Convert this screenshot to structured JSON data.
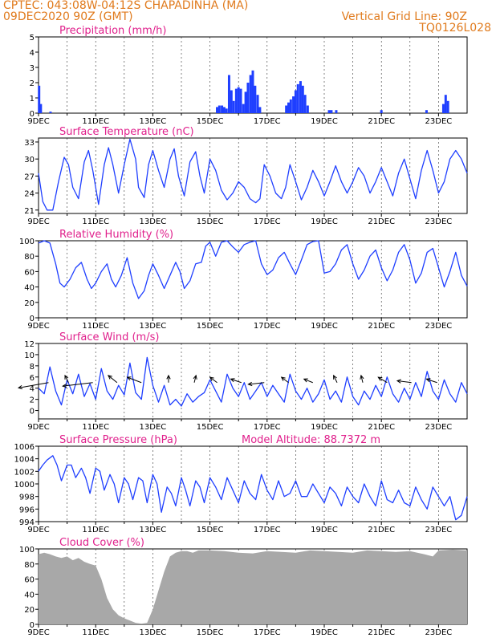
{
  "header": {
    "center_line": "CPTEC:   043:08W-04:12S   CHAPADINHA (MA)",
    "run_time": "09DEC2020 90Z (GMT)",
    "grid_note": "Vertical Grid Line: 90Z",
    "product_code": "TQ0126L028"
  },
  "colors": {
    "header": "#e07a1c",
    "panel_title": "#e0208c",
    "series": "#1f3fff",
    "cloud": "#a8a8a8",
    "axis": "#000000"
  },
  "x_axis": {
    "ticks": [
      "9DEC",
      "11DEC",
      "13DEC",
      "15DEC",
      "17DEC",
      "19DEC",
      "21DEC",
      "23DEC"
    ],
    "range_days": [
      0,
      15
    ]
  },
  "chart_data": [
    {
      "id": "precip",
      "type": "bar",
      "title": "Precipitation (mm/h)",
      "ylim": [
        0,
        5
      ],
      "yticks": [
        0,
        1,
        2,
        3,
        4,
        5
      ],
      "units": "mm/h",
      "x": [
        0.02,
        0.08,
        0.42,
        6.25,
        6.33,
        6.42,
        6.5,
        6.58,
        6.67,
        6.75,
        6.83,
        6.92,
        7.0,
        7.08,
        7.17,
        7.25,
        7.33,
        7.42,
        7.5,
        7.58,
        7.67,
        7.75,
        8.67,
        8.75,
        8.83,
        8.92,
        9.0,
        9.08,
        9.17,
        9.25,
        9.33,
        9.42,
        10.17,
        10.25,
        10.42,
        12.0,
        13.58,
        14.17,
        14.25,
        14.33
      ],
      "values": [
        1.8,
        0.6,
        0.1,
        0.4,
        0.5,
        0.5,
        0.4,
        0.3,
        2.5,
        1.5,
        0.8,
        1.6,
        1.7,
        1.6,
        0.6,
        1.4,
        2.0,
        2.5,
        2.8,
        1.8,
        1.2,
        0.4,
        0.5,
        0.7,
        0.9,
        1.1,
        1.5,
        1.9,
        2.1,
        1.8,
        1.2,
        0.5,
        0.2,
        0.2,
        0.2,
        0.2,
        0.2,
        0.6,
        1.2,
        0.8
      ]
    },
    {
      "id": "temp",
      "type": "line",
      "title": "Surface Temperature (nC)",
      "ylim": [
        20.4,
        33.7
      ],
      "yticks": [
        21,
        24,
        27,
        30,
        33
      ],
      "x": [
        0.0,
        0.15,
        0.3,
        0.5,
        0.7,
        0.9,
        1.05,
        1.2,
        1.4,
        1.6,
        1.75,
        1.9,
        2.1,
        2.3,
        2.45,
        2.6,
        2.8,
        3.0,
        3.2,
        3.4,
        3.5,
        3.7,
        3.85,
        4.0,
        4.2,
        4.4,
        4.6,
        4.75,
        4.9,
        5.1,
        5.3,
        5.5,
        5.65,
        5.8,
        6.0,
        6.2,
        6.4,
        6.6,
        6.8,
        7.0,
        7.2,
        7.4,
        7.6,
        7.75,
        7.9,
        8.1,
        8.3,
        8.5,
        8.65,
        8.8,
        9.0,
        9.2,
        9.4,
        9.6,
        9.8,
        10.0,
        10.2,
        10.4,
        10.6,
        10.8,
        11.0,
        11.2,
        11.4,
        11.6,
        11.8,
        12.0,
        12.2,
        12.4,
        12.6,
        12.8,
        13.0,
        13.2,
        13.4,
        13.6,
        13.8,
        14.0,
        14.2,
        14.4,
        14.6,
        14.8,
        15.0
      ],
      "values": [
        27.5,
        22.5,
        21.0,
        21.0,
        26.0,
        30.3,
        29.0,
        25.0,
        23.0,
        29.5,
        31.5,
        28.0,
        22.0,
        29.0,
        32.0,
        29.0,
        24.0,
        29.0,
        33.5,
        30.0,
        25.0,
        23.2,
        29.0,
        31.5,
        28.0,
        25.0,
        30.0,
        31.8,
        27.0,
        23.5,
        29.5,
        31.3,
        27.0,
        24.0,
        30.0,
        28.0,
        24.5,
        22.8,
        24.0,
        26.0,
        25.0,
        23.0,
        22.3,
        23.0,
        29.0,
        27.0,
        24.0,
        23.0,
        25.0,
        29.0,
        26.0,
        22.8,
        25.0,
        28.0,
        26.0,
        23.5,
        26.0,
        28.8,
        26.0,
        24.0,
        26.0,
        28.5,
        27.0,
        24.0,
        26.0,
        28.5,
        26.0,
        23.5,
        27.5,
        30.0,
        26.5,
        23.0,
        28.0,
        31.5,
        28.0,
        24.0,
        26.0,
        30.0,
        31.5,
        30.0,
        27.5
      ]
    },
    {
      "id": "rh",
      "type": "line",
      "title": "Relative Humidity (%)",
      "ylim": [
        0,
        100
      ],
      "yticks": [
        0,
        20,
        40,
        60,
        80,
        100
      ],
      "x": [
        0.0,
        0.2,
        0.4,
        0.6,
        0.75,
        0.9,
        1.1,
        1.3,
        1.5,
        1.7,
        1.85,
        2.0,
        2.2,
        2.4,
        2.55,
        2.7,
        2.9,
        3.1,
        3.3,
        3.5,
        3.7,
        3.85,
        4.0,
        4.2,
        4.4,
        4.6,
        4.8,
        4.95,
        5.1,
        5.3,
        5.5,
        5.7,
        5.85,
        6.0,
        6.2,
        6.4,
        6.6,
        6.8,
        7.0,
        7.2,
        7.4,
        7.6,
        7.8,
        8.0,
        8.2,
        8.4,
        8.6,
        8.8,
        9.0,
        9.2,
        9.4,
        9.6,
        9.8,
        10.0,
        10.2,
        10.4,
        10.6,
        10.8,
        11.0,
        11.2,
        11.4,
        11.6,
        11.8,
        12.0,
        12.2,
        12.4,
        12.6,
        12.8,
        13.0,
        13.2,
        13.4,
        13.6,
        13.8,
        14.0,
        14.2,
        14.4,
        14.6,
        14.8,
        15.0
      ],
      "values": [
        97,
        100,
        97,
        70,
        45,
        40,
        50,
        65,
        72,
        50,
        38,
        45,
        60,
        70,
        50,
        40,
        55,
        78,
        45,
        25,
        35,
        55,
        70,
        55,
        38,
        55,
        72,
        60,
        38,
        48,
        70,
        72,
        93,
        98,
        80,
        98,
        100,
        92,
        85,
        95,
        98,
        100,
        70,
        56,
        62,
        78,
        85,
        70,
        56,
        75,
        95,
        99,
        100,
        58,
        60,
        70,
        88,
        95,
        70,
        50,
        62,
        80,
        88,
        65,
        48,
        62,
        85,
        95,
        75,
        45,
        58,
        85,
        90,
        65,
        40,
        60,
        85,
        55,
        41
      ]
    },
    {
      "id": "wind",
      "type": "line",
      "title": "Surface Wind (m/s)",
      "ylim": [
        -1.5,
        12
      ],
      "yticks": [
        0,
        2,
        4,
        6,
        8,
        10,
        12
      ],
      "x": [
        0.0,
        0.2,
        0.4,
        0.6,
        0.8,
        1.0,
        1.2,
        1.4,
        1.6,
        1.8,
        2.0,
        2.2,
        2.4,
        2.6,
        2.8,
        3.0,
        3.2,
        3.4,
        3.6,
        3.8,
        4.0,
        4.2,
        4.4,
        4.6,
        4.8,
        5.0,
        5.2,
        5.4,
        5.6,
        5.8,
        6.0,
        6.2,
        6.4,
        6.6,
        6.8,
        7.0,
        7.2,
        7.4,
        7.6,
        7.8,
        8.0,
        8.2,
        8.4,
        8.6,
        8.8,
        9.0,
        9.2,
        9.4,
        9.6,
        9.8,
        10.0,
        10.2,
        10.4,
        10.6,
        10.8,
        11.0,
        11.2,
        11.4,
        11.6,
        11.8,
        12.0,
        12.2,
        12.4,
        12.6,
        12.8,
        13.0,
        13.2,
        13.4,
        13.6,
        13.8,
        14.0,
        14.2,
        14.4,
        14.6,
        14.8,
        15.0
      ],
      "values": [
        4.0,
        3.0,
        7.8,
        3.5,
        1.0,
        5.5,
        3.0,
        6.5,
        2.5,
        4.8,
        2.0,
        7.5,
        3.5,
        2.0,
        4.5,
        2.8,
        8.5,
        3.2,
        2.0,
        9.5,
        4.5,
        1.5,
        4.5,
        1.0,
        2.0,
        0.8,
        3.0,
        1.5,
        2.5,
        3.2,
        5.5,
        3.5,
        1.5,
        6.5,
        4.0,
        2.5,
        5.0,
        2.0,
        3.5,
        5.0,
        2.5,
        4.5,
        3.0,
        1.5,
        6.5,
        3.5,
        2.0,
        4.0,
        1.5,
        3.0,
        5.5,
        2.0,
        3.5,
        1.5,
        6.0,
        2.5,
        1.0,
        3.5,
        2.0,
        4.5,
        2.5,
        6.0,
        3.0,
        1.5,
        4.0,
        2.0,
        5.0,
        2.5,
        7.0,
        3.5,
        2.0,
        5.5,
        3.0,
        1.5,
        5.0,
        3.0
      ],
      "barbs": [
        {
          "x": 0.35,
          "y": 5.0,
          "u": -1.7,
          "v": -0.3
        },
        {
          "x": 1.05,
          "y": 5.0,
          "u": -0.2,
          "v": 0.4
        },
        {
          "x": 1.9,
          "y": 5.0,
          "u": -1.7,
          "v": -0.2
        },
        {
          "x": 2.75,
          "y": 5.0,
          "u": -0.5,
          "v": 0.4
        },
        {
          "x": 3.6,
          "y": 5.0,
          "u": -0.8,
          "v": 0.3
        },
        {
          "x": 4.55,
          "y": 5.0,
          "u": 0.0,
          "v": 0.4
        },
        {
          "x": 5.45,
          "y": 5.0,
          "u": 0.1,
          "v": 0.4
        },
        {
          "x": 6.25,
          "y": 5.0,
          "u": -0.4,
          "v": 0.3
        },
        {
          "x": 7.1,
          "y": 5.0,
          "u": -0.6,
          "v": 0.2
        },
        {
          "x": 7.9,
          "y": 5.0,
          "u": -0.9,
          "v": -0.1
        },
        {
          "x": 8.75,
          "y": 5.0,
          "u": -0.4,
          "v": 0.3
        },
        {
          "x": 9.6,
          "y": 5.0,
          "u": -0.5,
          "v": 0.2
        },
        {
          "x": 10.45,
          "y": 5.0,
          "u": -0.2,
          "v": 0.4
        },
        {
          "x": 11.35,
          "y": 5.0,
          "u": -0.1,
          "v": 0.4
        },
        {
          "x": 12.2,
          "y": 5.0,
          "u": -0.5,
          "v": 0.3
        },
        {
          "x": 13.05,
          "y": 5.0,
          "u": -0.8,
          "v": 0.1
        },
        {
          "x": 13.95,
          "y": 5.0,
          "u": -0.6,
          "v": 0.2
        }
      ]
    },
    {
      "id": "pressure",
      "type": "line",
      "title": "Surface Pressure (hPa)",
      "annotation": "Model Altitude: 88.7372 m",
      "ylim": [
        994,
        1006
      ],
      "yticks": [
        994,
        996,
        998,
        1000,
        1002,
        1004,
        1006
      ],
      "x": [
        0.0,
        0.15,
        0.3,
        0.5,
        0.65,
        0.8,
        1.0,
        1.15,
        1.3,
        1.5,
        1.65,
        1.8,
        2.0,
        2.15,
        2.3,
        2.5,
        2.65,
        2.8,
        3.0,
        3.15,
        3.3,
        3.5,
        3.65,
        3.8,
        4.0,
        4.15,
        4.3,
        4.5,
        4.65,
        4.8,
        5.0,
        5.15,
        5.3,
        5.5,
        5.65,
        5.8,
        6.0,
        6.2,
        6.4,
        6.6,
        6.8,
        7.0,
        7.2,
        7.4,
        7.6,
        7.8,
        8.0,
        8.2,
        8.4,
        8.6,
        8.8,
        9.0,
        9.2,
        9.4,
        9.6,
        9.8,
        10.0,
        10.2,
        10.4,
        10.6,
        10.8,
        11.0,
        11.2,
        11.4,
        11.6,
        11.8,
        12.0,
        12.2,
        12.4,
        12.6,
        12.8,
        13.0,
        13.2,
        13.4,
        13.6,
        13.8,
        14.0,
        14.2,
        14.4,
        14.6,
        14.8,
        15.0
      ],
      "values": [
        1002.0,
        1003.0,
        1003.8,
        1004.5,
        1003.0,
        1000.5,
        1003.0,
        1003.0,
        1001.0,
        1002.5,
        1001.0,
        998.5,
        1002.5,
        1002.0,
        999.0,
        1001.5,
        1000.0,
        997.0,
        1001.0,
        1000.0,
        997.5,
        1001.0,
        1000.5,
        997.0,
        1001.5,
        1000.0,
        995.5,
        999.5,
        998.5,
        996.5,
        1001.0,
        999.0,
        996.5,
        1000.5,
        999.5,
        997.0,
        1001.0,
        999.5,
        997.5,
        1001.0,
        999.0,
        997.0,
        1000.5,
        998.5,
        997.5,
        1001.5,
        999.0,
        997.5,
        1000.5,
        998.0,
        998.5,
        1000.5,
        998.0,
        998.0,
        1000.0,
        998.5,
        997.0,
        999.5,
        998.5,
        996.5,
        999.5,
        998.0,
        997.0,
        1000.0,
        998.0,
        996.5,
        1000.5,
        997.5,
        997.0,
        999.0,
        997.0,
        996.5,
        999.5,
        997.5,
        996.0,
        999.5,
        998.0,
        996.5,
        998.0,
        994.3,
        995.0,
        998.0
      ]
    },
    {
      "id": "cloud",
      "type": "area",
      "title": "Cloud Cover (%)",
      "ylim": [
        0,
        100
      ],
      "yticks": [
        0,
        20,
        40,
        60,
        80,
        100
      ],
      "x": [
        0.0,
        0.2,
        0.4,
        0.6,
        0.8,
        1.0,
        1.2,
        1.4,
        1.6,
        1.8,
        2.0,
        2.2,
        2.4,
        2.6,
        2.8,
        3.0,
        3.2,
        3.4,
        3.6,
        3.8,
        4.0,
        4.2,
        4.4,
        4.6,
        4.8,
        5.0,
        5.2,
        5.4,
        5.6,
        5.8,
        6.0,
        6.5,
        7.0,
        7.5,
        8.0,
        8.5,
        9.0,
        9.5,
        10.0,
        10.5,
        11.0,
        11.5,
        12.0,
        12.5,
        13.0,
        13.5,
        13.8,
        14.0,
        14.5,
        15.0
      ],
      "values": [
        93,
        95,
        93,
        90,
        88,
        90,
        85,
        88,
        83,
        80,
        78,
        60,
        35,
        20,
        12,
        8,
        5,
        2,
        1,
        2,
        20,
        45,
        70,
        90,
        95,
        97,
        97,
        95,
        98,
        98,
        98,
        97,
        95,
        94,
        97,
        96,
        95,
        98,
        97,
        96,
        95,
        98,
        97,
        96,
        97,
        93,
        90,
        98,
        99,
        98
      ]
    }
  ]
}
